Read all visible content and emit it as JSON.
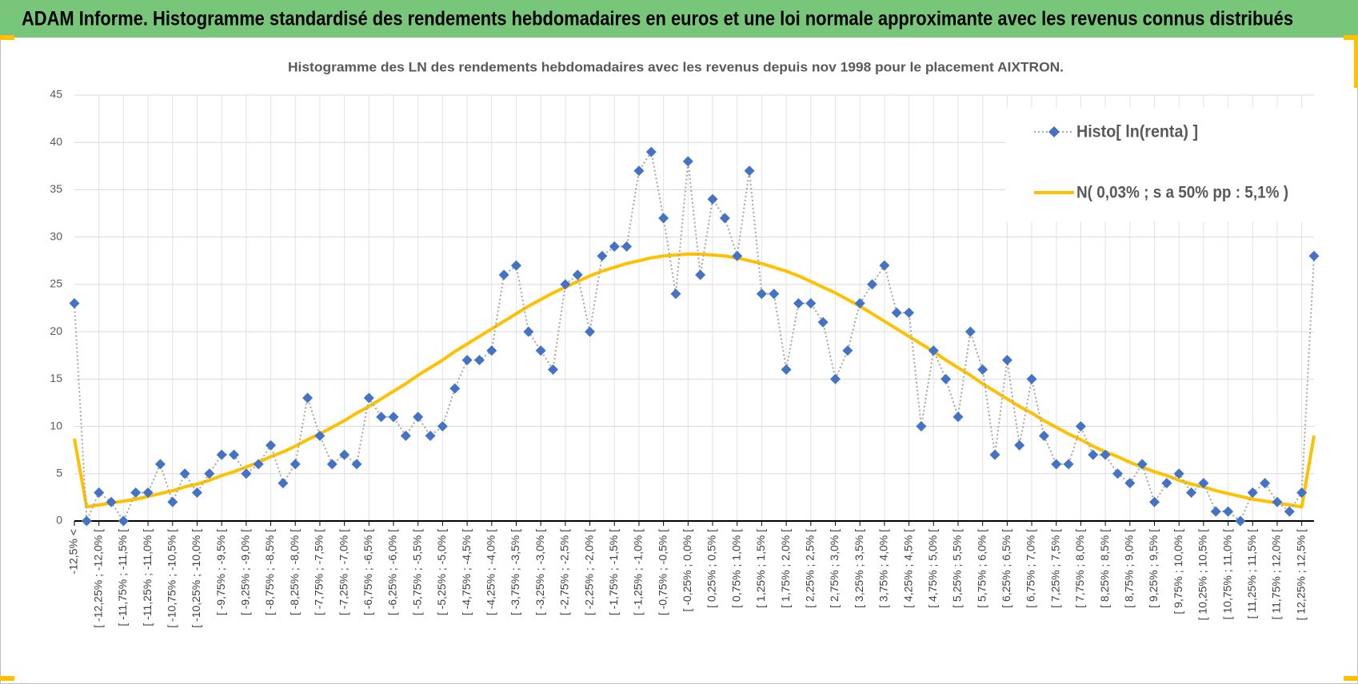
{
  "header": {
    "title": "ADAM Informe. Histogramme standardisé des rendements hebdomadaires en euros et une loi normale approximante avec les revenus connus distribués"
  },
  "chart_data": {
    "type": "line",
    "title": "Histogramme des LN des rendements hebdomadaires avec les revenus depuis nov 1998 pour le placement AIXTRON.",
    "categories": [
      "-12,5% <",
      null,
      "[ -12,25% ; -12,0% [",
      null,
      "[ -11,75% ; -11,5% [",
      null,
      "[ -11,25% ; -11,0% [",
      null,
      "[ -10,75% ; -10,5% [",
      null,
      "[ -10,25% ; -10,0% [",
      null,
      "[ -9,75% ; -9,5% [",
      null,
      "[ -9,25% ; -9,0% [",
      null,
      "[ -8,75% ; -8,5% [",
      null,
      "[ -8,25% ; -8,0% [",
      null,
      "[ -7,75% ; -7,5% [",
      null,
      "[ -7,25% ; -7,0% [",
      null,
      "[ -6,75% ; -6,5% [",
      null,
      "[ -6,25% ; -6,0% [",
      null,
      "[ -5,75% ; -5,5% [",
      null,
      "[ -5,25% ; -5,0% [",
      null,
      "[ -4,75% ; -4,5% [",
      null,
      "[ -4,25% ; -4,0% [",
      null,
      "[ -3,75% ; -3,5% [",
      null,
      "[ -3,25% ; -3,0% [",
      null,
      "[ -2,75% ; -2,5% [",
      null,
      "[ -2,25% ; -2,0% [",
      null,
      "[ -1,75% ; -1,5% [",
      null,
      "[ -1,25% ; -1,0% [",
      null,
      "[ -0,75% ; -0,5% [",
      null,
      "[ -0,25% ; 0,0% [",
      null,
      "[ 0,25% ; 0,5% [",
      null,
      "[ 0,75% ; 1,0% [",
      null,
      "[ 1,25% ; 1,5% [",
      null,
      "[ 1,75% ; 2,0% [",
      null,
      "[ 2,25% ; 2,5% [",
      null,
      "[ 2,75% ; 3,0% [",
      null,
      "[ 3,25% ; 3,5% [",
      null,
      "[ 3,75% ; 4,0% [",
      null,
      "[ 4,25% ; 4,5% [",
      null,
      "[ 4,75% ; 5,0% [",
      null,
      "[ 5,25% ; 5,5% [",
      null,
      "[ 5,75% ; 6,0% [",
      null,
      "[ 6,25% ; 6,5% [",
      null,
      "[ 6,75% ; 7,0% [",
      null,
      "[ 7,25% ; 7,5% [",
      null,
      "[ 7,75% ; 8,0% [",
      null,
      "[ 8,25% ; 8,5% [",
      null,
      "[ 8,75% ; 9,0% [",
      null,
      "[ 9,25% ; 9,5% [",
      null,
      "[ 9,75% ; 10,0% [",
      null,
      "[ 10,25% ; 10,5% [",
      null,
      "[ 10,75% ; 11,0% [",
      null,
      "[ 11,25% ; 11,5% [",
      null,
      "[ 11,75% ; 12,0% [",
      null,
      "[ 12,25% ; 12,5% [",
      null
    ],
    "series": [
      {
        "name": "Histo[ ln(renta) ]",
        "color": "#4472c4",
        "line_color": "#a6a6a6",
        "line_style": "dotted",
        "marker": "diamond",
        "values": [
          23,
          0,
          3,
          2,
          0,
          3,
          3,
          6,
          2,
          5,
          3,
          5,
          7,
          7,
          5,
          6,
          8,
          4,
          6,
          13,
          9,
          6,
          7,
          6,
          13,
          11,
          11,
          9,
          11,
          9,
          10,
          14,
          17,
          17,
          18,
          26,
          27,
          20,
          18,
          16,
          25,
          26,
          20,
          28,
          29,
          29,
          37,
          39,
          32,
          24,
          38,
          26,
          34,
          32,
          28,
          37,
          24,
          24,
          16,
          23,
          23,
          21,
          15,
          18,
          23,
          25,
          27,
          22,
          22,
          10,
          18,
          15,
          11,
          20,
          16,
          7,
          17,
          8,
          15,
          9,
          6,
          6,
          10,
          7,
          7,
          5,
          4,
          6,
          2,
          4,
          5,
          3,
          4,
          1,
          1,
          0,
          3,
          4,
          2,
          1,
          3,
          28
        ]
      },
      {
        "name": "N( 0,03% ; s a 50% pp : 5,1% )",
        "color": "#ffc000",
        "line_style": "solid",
        "values": [
          8.7,
          1.5,
          1.7,
          1.9,
          2.1,
          2.3,
          2.6,
          2.9,
          3.2,
          3.6,
          3.9,
          4.3,
          4.8,
          5.2,
          5.7,
          6.2,
          6.8,
          7.3,
          7.9,
          8.6,
          9.2,
          9.9,
          10.6,
          11.4,
          12.1,
          12.9,
          13.7,
          14.5,
          15.4,
          16.2,
          17.0,
          17.9,
          18.7,
          19.5,
          20.3,
          21.1,
          21.9,
          22.7,
          23.4,
          24.1,
          24.7,
          25.3,
          25.9,
          26.4,
          26.8,
          27.2,
          27.5,
          27.8,
          28.0,
          28.1,
          28.2,
          28.2,
          28.1,
          28.0,
          27.8,
          27.5,
          27.2,
          26.8,
          26.4,
          25.9,
          25.3,
          24.7,
          24.1,
          23.4,
          22.7,
          21.9,
          21.1,
          20.3,
          19.5,
          18.7,
          17.9,
          17.0,
          16.2,
          15.4,
          14.5,
          13.7,
          12.9,
          12.1,
          11.4,
          10.6,
          9.9,
          9.2,
          8.6,
          7.9,
          7.3,
          6.8,
          6.2,
          5.7,
          5.2,
          4.8,
          4.3,
          3.9,
          3.6,
          3.2,
          2.9,
          2.6,
          2.3,
          2.1,
          1.9,
          1.7,
          1.5,
          9.0
        ]
      }
    ],
    "ylim": [
      0,
      45
    ],
    "yticks": [
      0,
      5,
      10,
      15,
      20,
      25,
      30,
      35,
      40,
      45
    ],
    "grid": true,
    "legend": "top-right"
  }
}
